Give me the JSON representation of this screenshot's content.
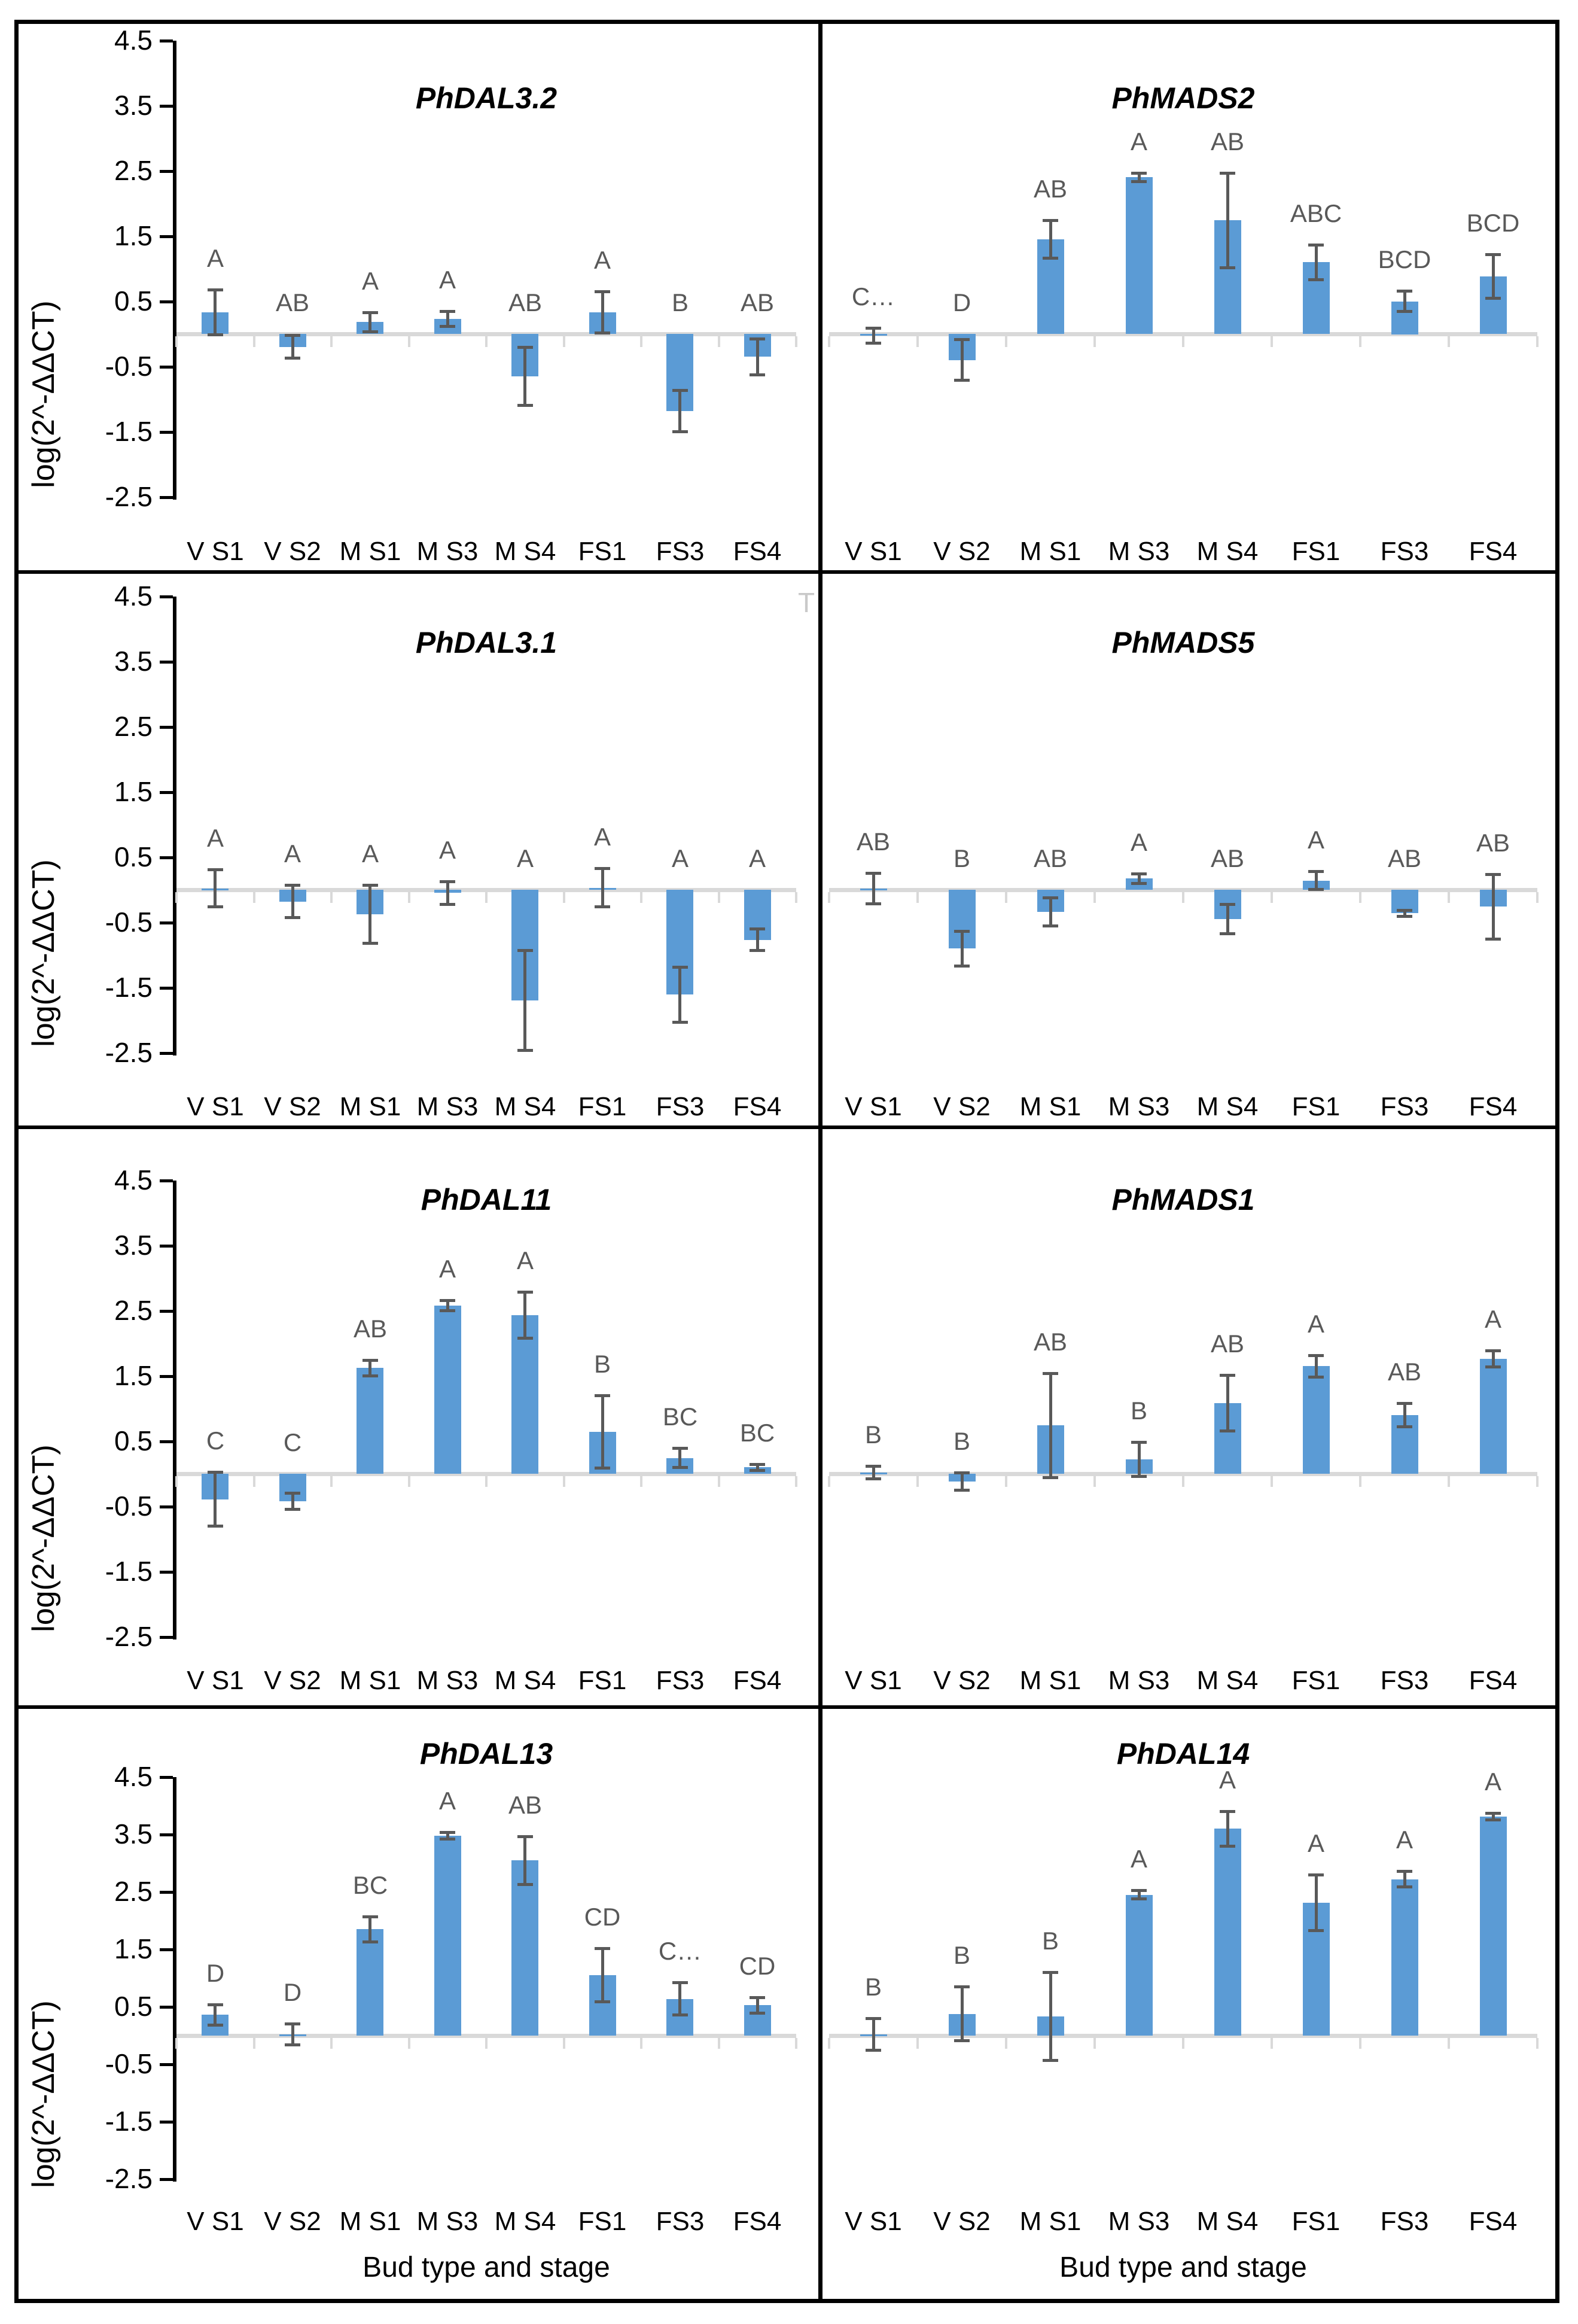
{
  "figure": {
    "y_axis_label": "log(2^-ΔΔCT)",
    "x_axis_title": "Bud type and stage",
    "y_ticks": [
      "4.5",
      "3.5",
      "2.5",
      "1.5",
      "0.5",
      "-0.5",
      "-1.5",
      "-2.5"
    ],
    "categories": [
      "V S1",
      "V S2",
      "M S1",
      "M S3",
      "M S4",
      "FS1",
      "FS3",
      "FS4"
    ],
    "stray_mark": "T"
  },
  "colors": {
    "bar": "#5b9bd5",
    "error_bar": "#595959",
    "letter_text": "#595959",
    "zero_line": "#d9d9d9",
    "x_tick": "#d9d9d9",
    "border": "#000000",
    "stray_mark": "#c9c9c9"
  },
  "chart_data": [
    {
      "type": "bar",
      "title": "PhDAL3.2",
      "ylim": [
        -2.5,
        4.5
      ],
      "grid": false,
      "bars": [
        {
          "category": "V S1",
          "value": 0.33,
          "error": 0.35,
          "letter": "A"
        },
        {
          "category": "V S2",
          "value": -0.2,
          "error": 0.18,
          "letter": "AB"
        },
        {
          "category": "M S1",
          "value": 0.18,
          "error": 0.15,
          "letter": "A"
        },
        {
          "category": "M S3",
          "value": 0.23,
          "error": 0.12,
          "letter": "A"
        },
        {
          "category": "M S4",
          "value": -0.65,
          "error": 0.45,
          "letter": "AB"
        },
        {
          "category": "FS1",
          "value": 0.33,
          "error": 0.32,
          "letter": "A"
        },
        {
          "category": "FS3",
          "value": -1.18,
          "error": 0.32,
          "letter": "B"
        },
        {
          "category": "FS4",
          "value": -0.35,
          "error": 0.28,
          "letter": "AB"
        }
      ]
    },
    {
      "type": "bar",
      "title": "PhMADS2",
      "ylim": [
        -2.5,
        4.5
      ],
      "grid": false,
      "bars": [
        {
          "category": "V S1",
          "value": -0.03,
          "error": 0.12,
          "letter": "C…"
        },
        {
          "category": "V S2",
          "value": -0.4,
          "error": 0.32,
          "letter": "D"
        },
        {
          "category": "M S1",
          "value": 1.45,
          "error": 0.29,
          "letter": "AB"
        },
        {
          "category": "M S3",
          "value": 2.4,
          "error": 0.07,
          "letter": "A"
        },
        {
          "category": "M S4",
          "value": 1.74,
          "error": 0.73,
          "letter": "AB"
        },
        {
          "category": "FS1",
          "value": 1.1,
          "error": 0.27,
          "letter": "ABC"
        },
        {
          "category": "FS3",
          "value": 0.5,
          "error": 0.16,
          "letter": "BCD"
        },
        {
          "category": "FS4",
          "value": 0.88,
          "error": 0.34,
          "letter": "BCD"
        }
      ]
    },
    {
      "type": "bar",
      "title": "PhDAL3.1",
      "ylim": [
        -2.5,
        4.5
      ],
      "grid": false,
      "bars": [
        {
          "category": "V S1",
          "value": 0.02,
          "error": 0.29,
          "letter": "A"
        },
        {
          "category": "V S2",
          "value": -0.18,
          "error": 0.25,
          "letter": "A"
        },
        {
          "category": "M S1",
          "value": -0.38,
          "error": 0.45,
          "letter": "A"
        },
        {
          "category": "M S3",
          "value": -0.05,
          "error": 0.18,
          "letter": "A"
        },
        {
          "category": "M S4",
          "value": -1.7,
          "error": 0.77,
          "letter": "A"
        },
        {
          "category": "FS1",
          "value": 0.03,
          "error": 0.3,
          "letter": "A"
        },
        {
          "category": "FS3",
          "value": -1.61,
          "error": 0.43,
          "letter": "A"
        },
        {
          "category": "FS4",
          "value": -0.77,
          "error": 0.17,
          "letter": "A"
        }
      ]
    },
    {
      "type": "bar",
      "title": "PhMADS5",
      "ylim": [
        -2.5,
        4.5
      ],
      "grid": false,
      "bars": [
        {
          "category": "V S1",
          "value": 0.02,
          "error": 0.24,
          "letter": "AB"
        },
        {
          "category": "V S2",
          "value": -0.9,
          "error": 0.27,
          "letter": "B"
        },
        {
          "category": "M S1",
          "value": -0.34,
          "error": 0.22,
          "letter": "AB"
        },
        {
          "category": "M S3",
          "value": 0.17,
          "error": 0.08,
          "letter": "A"
        },
        {
          "category": "M S4",
          "value": -0.45,
          "error": 0.23,
          "letter": "AB"
        },
        {
          "category": "FS1",
          "value": 0.14,
          "error": 0.14,
          "letter": "A"
        },
        {
          "category": "FS3",
          "value": -0.36,
          "error": 0.05,
          "letter": "AB"
        },
        {
          "category": "FS4",
          "value": -0.26,
          "error": 0.5,
          "letter": "AB"
        }
      ]
    },
    {
      "type": "bar",
      "title": "PhDAL11",
      "ylim": [
        -2.5,
        4.5
      ],
      "grid": false,
      "bars": [
        {
          "category": "V S1",
          "value": -0.39,
          "error": 0.42,
          "letter": "C"
        },
        {
          "category": "V S2",
          "value": -0.42,
          "error": 0.13,
          "letter": "C"
        },
        {
          "category": "M S1",
          "value": 1.62,
          "error": 0.12,
          "letter": "AB"
        },
        {
          "category": "M S3",
          "value": 2.58,
          "error": 0.08,
          "letter": "A"
        },
        {
          "category": "M S4",
          "value": 2.43,
          "error": 0.36,
          "letter": "A"
        },
        {
          "category": "FS1",
          "value": 0.64,
          "error": 0.56,
          "letter": "B"
        },
        {
          "category": "FS3",
          "value": 0.24,
          "error": 0.15,
          "letter": "BC"
        },
        {
          "category": "FS4",
          "value": 0.1,
          "error": 0.05,
          "letter": "BC"
        }
      ]
    },
    {
      "type": "bar",
      "title": "PhMADS1",
      "ylim": [
        -2.5,
        4.5
      ],
      "grid": false,
      "bars": [
        {
          "category": "V S1",
          "value": 0.02,
          "error": 0.1,
          "letter": "B"
        },
        {
          "category": "V S2",
          "value": -0.12,
          "error": 0.14,
          "letter": "B"
        },
        {
          "category": "M S1",
          "value": 0.74,
          "error": 0.8,
          "letter": "AB"
        },
        {
          "category": "M S3",
          "value": 0.22,
          "error": 0.27,
          "letter": "B"
        },
        {
          "category": "M S4",
          "value": 1.08,
          "error": 0.43,
          "letter": "AB"
        },
        {
          "category": "FS1",
          "value": 1.65,
          "error": 0.17,
          "letter": "A"
        },
        {
          "category": "FS3",
          "value": 0.9,
          "error": 0.18,
          "letter": "AB"
        },
        {
          "category": "FS4",
          "value": 1.76,
          "error": 0.13,
          "letter": "A"
        }
      ]
    },
    {
      "type": "bar",
      "title": "PhDAL13",
      "ylim": [
        -2.5,
        4.5
      ],
      "grid": false,
      "bars": [
        {
          "category": "V S1",
          "value": 0.36,
          "error": 0.18,
          "letter": "D"
        },
        {
          "category": "V S2",
          "value": 0.02,
          "error": 0.19,
          "letter": "D"
        },
        {
          "category": "M S1",
          "value": 1.85,
          "error": 0.22,
          "letter": "BC"
        },
        {
          "category": "M S3",
          "value": 3.48,
          "error": 0.06,
          "letter": "A"
        },
        {
          "category": "M S4",
          "value": 3.05,
          "error": 0.42,
          "letter": "AB"
        },
        {
          "category": "FS1",
          "value": 1.05,
          "error": 0.47,
          "letter": "CD"
        },
        {
          "category": "FS3",
          "value": 0.64,
          "error": 0.29,
          "letter": "C…"
        },
        {
          "category": "FS4",
          "value": 0.53,
          "error": 0.14,
          "letter": "CD"
        }
      ]
    },
    {
      "type": "bar",
      "title": "PhDAL14",
      "ylim": [
        -2.5,
        4.5
      ],
      "grid": false,
      "bars": [
        {
          "category": "V S1",
          "value": 0.02,
          "error": 0.28,
          "letter": "B"
        },
        {
          "category": "V S2",
          "value": 0.38,
          "error": 0.47,
          "letter": "B"
        },
        {
          "category": "M S1",
          "value": 0.33,
          "error": 0.77,
          "letter": "B"
        },
        {
          "category": "M S3",
          "value": 2.45,
          "error": 0.08,
          "letter": "A"
        },
        {
          "category": "M S4",
          "value": 3.6,
          "error": 0.31,
          "letter": "A"
        },
        {
          "category": "FS1",
          "value": 2.31,
          "error": 0.49,
          "letter": "A"
        },
        {
          "category": "FS3",
          "value": 2.72,
          "error": 0.14,
          "letter": "A"
        },
        {
          "category": "FS4",
          "value": 3.81,
          "error": 0.06,
          "letter": "A"
        }
      ]
    }
  ]
}
